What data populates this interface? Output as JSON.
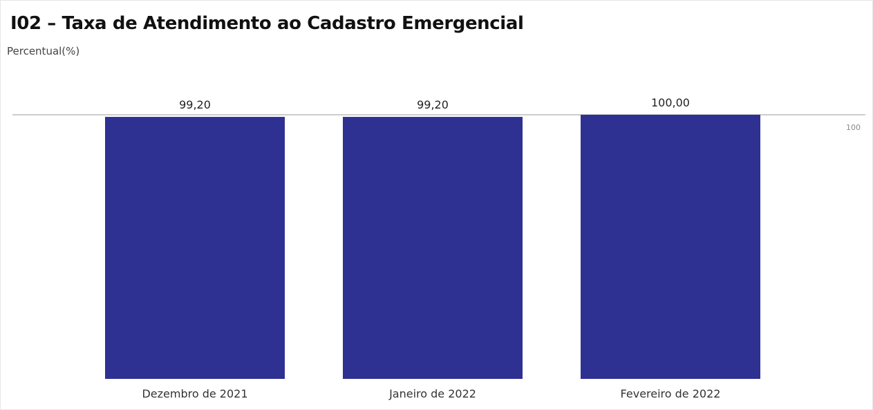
{
  "chart_data": {
    "type": "bar",
    "title": "I02 – Taxa de Atendimento ao Cadastro Emergencial",
    "ylabel": "Percentual(%)",
    "xlabel": "",
    "categories": [
      "Dezembro de 2021",
      "Janeiro de 2022",
      "Fevereiro de 2022"
    ],
    "values": [
      99.2,
      99.2,
      100.0
    ],
    "data_labels": [
      "99,20",
      "99,20",
      "100,00"
    ],
    "ytick_labels": [
      "100"
    ],
    "yticks": [
      100
    ],
    "ylim": [
      0,
      100
    ],
    "grid": true,
    "legend": "none",
    "bar_color": "#2e3192",
    "grid_color": "#cccccc"
  }
}
